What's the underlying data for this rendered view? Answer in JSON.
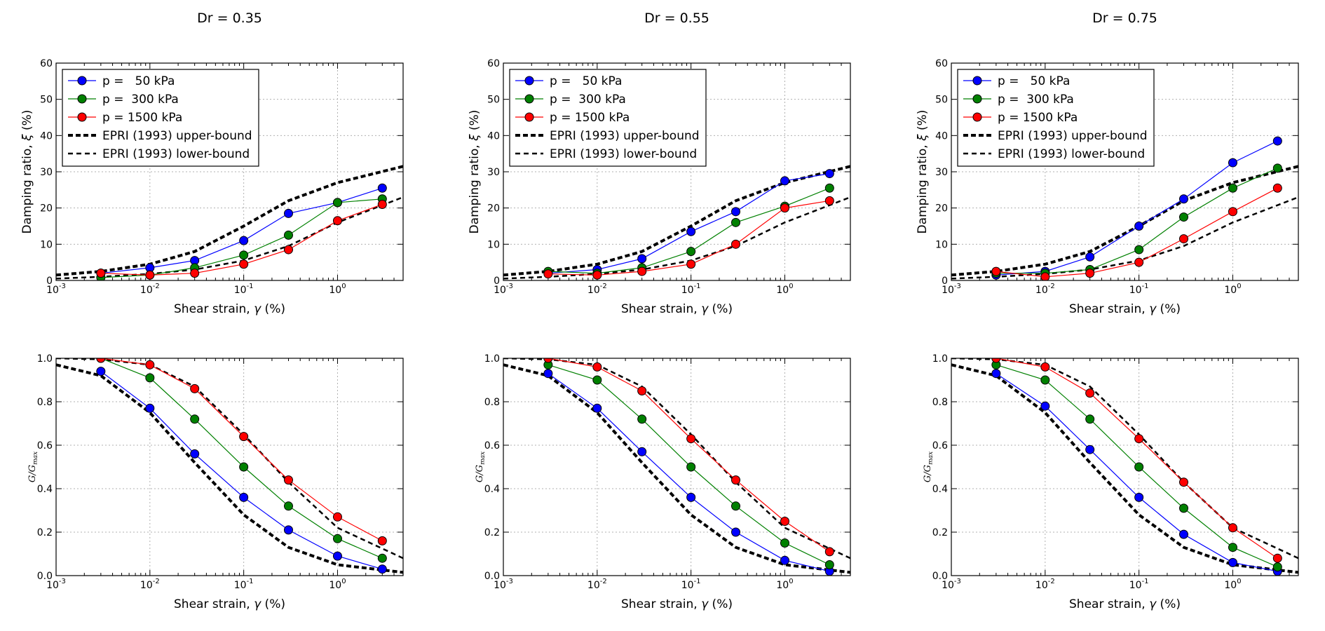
{
  "chart_data": [
    {
      "type": "line",
      "title": "Dr = 0.35",
      "xlabel": "Shear strain, γ (%)",
      "ylabel": "Damping ratio, ξ (%)",
      "xscale": "log",
      "xlim": [
        0.001,
        5
      ],
      "ylim": [
        0,
        60
      ],
      "xticks": [
        "10-3",
        "10-2",
        "10-1",
        "100"
      ],
      "yticks": [
        "0",
        "10",
        "20",
        "30",
        "40",
        "50",
        "60"
      ],
      "grid": true,
      "legend_position": "top-left",
      "x": [
        0.003,
        0.01,
        0.03,
        0.1,
        0.3,
        1,
        3
      ],
      "series": [
        {
          "name": "p =   50 kPa",
          "color": "#0000ff",
          "style": "solid-marker",
          "values": [
            2.0,
            3.5,
            5.5,
            11.0,
            18.5,
            21.5,
            25.5
          ]
        },
        {
          "name": "p =  300 kPa",
          "color": "#008000",
          "style": "solid-marker",
          "values": [
            0.8,
            1.5,
            3.5,
            7.0,
            12.5,
            21.5,
            22.5
          ]
        },
        {
          "name": "p = 1500 kPa",
          "color": "#ff0000",
          "style": "solid-marker",
          "values": [
            2.0,
            1.5,
            2.0,
            4.5,
            8.5,
            16.5,
            21.0
          ]
        }
      ],
      "reference_lines": [
        {
          "name": "EPRI (1993) upper-bound",
          "style": "thick-dashed",
          "x": [
            0.001,
            0.003,
            0.01,
            0.03,
            0.1,
            0.3,
            1,
            5
          ],
          "values": [
            1.5,
            2.5,
            4.5,
            8.0,
            15.0,
            22.0,
            27.0,
            31.5
          ]
        },
        {
          "name": "EPRI (1993) lower-bound",
          "style": "dashed",
          "x": [
            0.001,
            0.003,
            0.01,
            0.03,
            0.1,
            0.3,
            1,
            5
          ],
          "values": [
            0.5,
            1.0,
            1.8,
            3.0,
            5.5,
            9.5,
            16.0,
            23.0
          ]
        }
      ]
    },
    {
      "type": "line",
      "title": "Dr = 0.55",
      "xlabel": "Shear strain, γ (%)",
      "ylabel": "Damping ratio, ξ (%)",
      "xscale": "log",
      "xlim": [
        0.001,
        5
      ],
      "ylim": [
        0,
        60
      ],
      "xticks": [
        "10-3",
        "10-2",
        "10-1",
        "100"
      ],
      "yticks": [
        "0",
        "10",
        "20",
        "30",
        "40",
        "50",
        "60"
      ],
      "grid": true,
      "legend_position": "top-left",
      "x": [
        0.003,
        0.01,
        0.03,
        0.1,
        0.3,
        1,
        3
      ],
      "series": [
        {
          "name": "p =   50 kPa",
          "color": "#0000ff",
          "style": "solid-marker",
          "values": [
            2.0,
            3.0,
            6.0,
            13.5,
            19.0,
            27.5,
            29.5
          ]
        },
        {
          "name": "p =  300 kPa",
          "color": "#008000",
          "style": "solid-marker",
          "values": [
            2.5,
            2.0,
            3.5,
            8.0,
            16.0,
            20.5,
            25.5
          ]
        },
        {
          "name": "p = 1500 kPa",
          "color": "#ff0000",
          "style": "solid-marker",
          "values": [
            1.8,
            1.5,
            2.5,
            4.5,
            10.0,
            20.0,
            22.0
          ]
        }
      ],
      "reference_lines": [
        {
          "name": "EPRI (1993) upper-bound",
          "style": "thick-dashed",
          "x": [
            0.001,
            0.003,
            0.01,
            0.03,
            0.1,
            0.3,
            1,
            5
          ],
          "values": [
            1.5,
            2.5,
            4.5,
            8.0,
            15.0,
            22.0,
            27.0,
            31.5
          ]
        },
        {
          "name": "EPRI (1993) lower-bound",
          "style": "dashed",
          "x": [
            0.001,
            0.003,
            0.01,
            0.03,
            0.1,
            0.3,
            1,
            5
          ],
          "values": [
            0.5,
            1.0,
            1.8,
            3.0,
            5.5,
            9.5,
            16.0,
            23.0
          ]
        }
      ]
    },
    {
      "type": "line",
      "title": "Dr = 0.75",
      "xlabel": "Shear strain, γ (%)",
      "ylabel": "Damping ratio, ξ (%)",
      "xscale": "log",
      "xlim": [
        0.001,
        5
      ],
      "ylim": [
        0,
        60
      ],
      "xticks": [
        "10-3",
        "10-2",
        "10-1",
        "100"
      ],
      "yticks": [
        "0",
        "10",
        "20",
        "30",
        "40",
        "50",
        "60"
      ],
      "grid": true,
      "legend_position": "top-left",
      "x": [
        0.003,
        0.01,
        0.03,
        0.1,
        0.3,
        1,
        3
      ],
      "series": [
        {
          "name": "p =   50 kPa",
          "color": "#0000ff",
          "style": "solid-marker",
          "values": [
            1.5,
            2.5,
            6.5,
            15.0,
            22.5,
            32.5,
            38.5
          ]
        },
        {
          "name": "p =  300 kPa",
          "color": "#008000",
          "style": "solid-marker",
          "values": [
            2.0,
            2.0,
            3.0,
            8.5,
            17.5,
            25.5,
            31.0
          ]
        },
        {
          "name": "p = 1500 kPa",
          "color": "#ff0000",
          "style": "solid-marker",
          "values": [
            2.5,
            1.0,
            2.0,
            5.0,
            11.5,
            19.0,
            25.5
          ]
        }
      ],
      "reference_lines": [
        {
          "name": "EPRI (1993) upper-bound",
          "style": "thick-dashed",
          "x": [
            0.001,
            0.003,
            0.01,
            0.03,
            0.1,
            0.3,
            1,
            5
          ],
          "values": [
            1.5,
            2.5,
            4.5,
            8.0,
            15.0,
            22.0,
            27.0,
            31.5
          ]
        },
        {
          "name": "EPRI (1993) lower-bound",
          "style": "dashed",
          "x": [
            0.001,
            0.003,
            0.01,
            0.03,
            0.1,
            0.3,
            1,
            5
          ],
          "values": [
            0.5,
            1.0,
            1.8,
            3.0,
            5.5,
            9.5,
            16.0,
            23.0
          ]
        }
      ]
    },
    {
      "type": "line",
      "title": "",
      "xlabel": "Shear strain, γ (%)",
      "ylabel": "G/Gmax",
      "xscale": "log",
      "xlim": [
        0.001,
        5
      ],
      "ylim": [
        0,
        1.0
      ],
      "xticks": [
        "10-3",
        "10-2",
        "10-1",
        "100"
      ],
      "yticks": [
        "0.0",
        "0.2",
        "0.4",
        "0.6",
        "0.8",
        "1.0"
      ],
      "grid": true,
      "legend_position": "",
      "x": [
        0.003,
        0.01,
        0.03,
        0.1,
        0.3,
        1,
        3
      ],
      "series": [
        {
          "name": "p =   50 kPa",
          "color": "#0000ff",
          "style": "solid-marker",
          "values": [
            0.94,
            0.77,
            0.56,
            0.36,
            0.21,
            0.09,
            0.03
          ]
        },
        {
          "name": "p =  300 kPa",
          "color": "#008000",
          "style": "solid-marker",
          "values": [
            1.0,
            0.91,
            0.72,
            0.5,
            0.32,
            0.17,
            0.08
          ]
        },
        {
          "name": "p = 1500 kPa",
          "color": "#ff0000",
          "style": "solid-marker",
          "values": [
            1.0,
            0.97,
            0.86,
            0.64,
            0.44,
            0.27,
            0.16
          ]
        }
      ],
      "reference_lines": [
        {
          "name": "EPRI (1993) upper-bound",
          "style": "thick-dashed",
          "x": [
            0.001,
            0.003,
            0.01,
            0.03,
            0.1,
            0.3,
            1,
            5
          ],
          "values": [
            0.97,
            0.92,
            0.75,
            0.52,
            0.28,
            0.13,
            0.05,
            0.015
          ]
        },
        {
          "name": "EPRI (1993) lower-bound",
          "style": "dashed",
          "x": [
            0.001,
            0.003,
            0.01,
            0.03,
            0.1,
            0.3,
            1,
            5
          ],
          "values": [
            1.0,
            0.995,
            0.97,
            0.87,
            0.65,
            0.43,
            0.22,
            0.08
          ]
        }
      ]
    },
    {
      "type": "line",
      "title": "",
      "xlabel": "Shear strain, γ (%)",
      "ylabel": "G/Gmax",
      "xscale": "log",
      "xlim": [
        0.001,
        5
      ],
      "ylim": [
        0,
        1.0
      ],
      "xticks": [
        "10-3",
        "10-2",
        "10-1",
        "100"
      ],
      "yticks": [
        "0.0",
        "0.2",
        "0.4",
        "0.6",
        "0.8",
        "1.0"
      ],
      "grid": true,
      "legend_position": "",
      "x": [
        0.003,
        0.01,
        0.03,
        0.1,
        0.3,
        1,
        3
      ],
      "series": [
        {
          "name": "p =   50 kPa",
          "color": "#0000ff",
          "style": "solid-marker",
          "values": [
            0.93,
            0.77,
            0.57,
            0.36,
            0.2,
            0.07,
            0.02
          ]
        },
        {
          "name": "p =  300 kPa",
          "color": "#008000",
          "style": "solid-marker",
          "values": [
            0.97,
            0.9,
            0.72,
            0.5,
            0.32,
            0.15,
            0.05
          ]
        },
        {
          "name": "p = 1500 kPa",
          "color": "#ff0000",
          "style": "solid-marker",
          "values": [
            1.0,
            0.96,
            0.85,
            0.63,
            0.44,
            0.25,
            0.11
          ]
        }
      ],
      "reference_lines": [
        {
          "name": "EPRI (1993) upper-bound",
          "style": "thick-dashed",
          "x": [
            0.001,
            0.003,
            0.01,
            0.03,
            0.1,
            0.3,
            1,
            5
          ],
          "values": [
            0.97,
            0.92,
            0.75,
            0.52,
            0.28,
            0.13,
            0.05,
            0.015
          ]
        },
        {
          "name": "EPRI (1993) lower-bound",
          "style": "dashed",
          "x": [
            0.001,
            0.003,
            0.01,
            0.03,
            0.1,
            0.3,
            1,
            5
          ],
          "values": [
            1.0,
            0.995,
            0.97,
            0.87,
            0.65,
            0.43,
            0.22,
            0.08
          ]
        }
      ]
    },
    {
      "type": "line",
      "title": "",
      "xlabel": "Shear strain, γ (%)",
      "ylabel": "G/Gmax",
      "xscale": "log",
      "xlim": [
        0.001,
        5
      ],
      "ylim": [
        0,
        1.0
      ],
      "xticks": [
        "10-3",
        "10-2",
        "10-1",
        "100"
      ],
      "yticks": [
        "0.0",
        "0.2",
        "0.4",
        "0.6",
        "0.8",
        "1.0"
      ],
      "grid": true,
      "legend_position": "",
      "x": [
        0.003,
        0.01,
        0.03,
        0.1,
        0.3,
        1,
        3
      ],
      "series": [
        {
          "name": "p =   50 kPa",
          "color": "#0000ff",
          "style": "solid-marker",
          "values": [
            0.93,
            0.78,
            0.58,
            0.36,
            0.19,
            0.06,
            0.02
          ]
        },
        {
          "name": "p =  300 kPa",
          "color": "#008000",
          "style": "solid-marker",
          "values": [
            0.97,
            0.9,
            0.72,
            0.5,
            0.31,
            0.13,
            0.04
          ]
        },
        {
          "name": "p = 1500 kPa",
          "color": "#ff0000",
          "style": "solid-marker",
          "values": [
            1.0,
            0.96,
            0.84,
            0.63,
            0.43,
            0.22,
            0.08
          ]
        }
      ],
      "reference_lines": [
        {
          "name": "EPRI (1993) upper-bound",
          "style": "thick-dashed",
          "x": [
            0.001,
            0.003,
            0.01,
            0.03,
            0.1,
            0.3,
            1,
            5
          ],
          "values": [
            0.97,
            0.92,
            0.75,
            0.52,
            0.28,
            0.13,
            0.05,
            0.015
          ]
        },
        {
          "name": "EPRI (1993) lower-bound",
          "style": "dashed",
          "x": [
            0.001,
            0.003,
            0.01,
            0.03,
            0.1,
            0.3,
            1,
            5
          ],
          "values": [
            1.0,
            0.995,
            0.97,
            0.87,
            0.65,
            0.43,
            0.22,
            0.08
          ]
        }
      ]
    }
  ]
}
